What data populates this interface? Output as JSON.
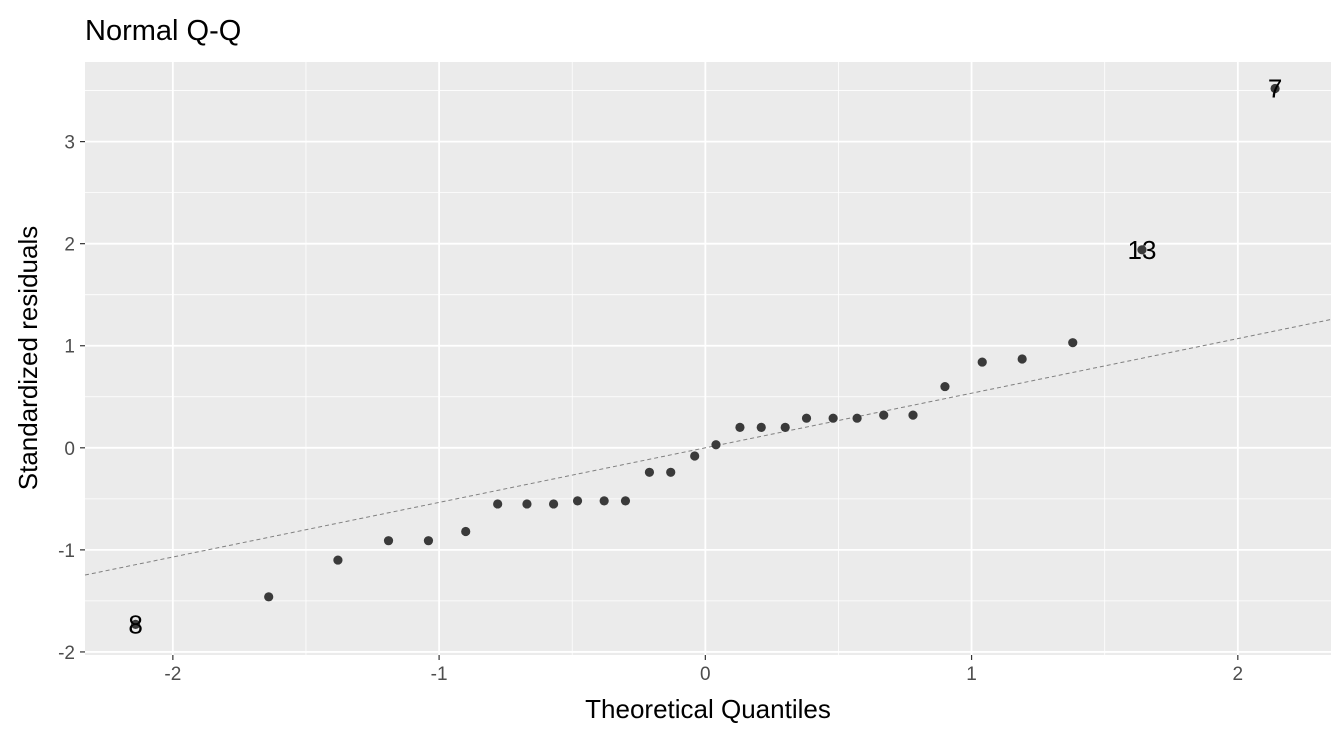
{
  "chart_data": {
    "type": "scatter",
    "title": "Normal Q-Q",
    "xlabel": "Theoretical Quantiles",
    "ylabel": "Standardized residuals",
    "xlim": [
      -2.33,
      2.35
    ],
    "ylim": [
      -2.03,
      3.78
    ],
    "xticks": [
      -2,
      -1,
      0,
      1,
      2
    ],
    "yticks": [
      -2,
      -1,
      0,
      1,
      2,
      3
    ],
    "x_tick_labels": [
      "-2",
      "-1",
      "0",
      "1",
      "2"
    ],
    "y_tick_labels": [
      "-2",
      "-1",
      "0",
      "1",
      "2",
      "3"
    ],
    "grid": true,
    "panel_color": "#ebebeb",
    "point_color": "#3a3a3a",
    "reference_line": {
      "intercept": 0.0,
      "slope": 0.535,
      "style": "dashed",
      "color": "#808080"
    },
    "points": [
      {
        "x": -2.14,
        "y": -1.73
      },
      {
        "x": -1.64,
        "y": -1.46
      },
      {
        "x": -1.38,
        "y": -1.1
      },
      {
        "x": -1.19,
        "y": -0.91
      },
      {
        "x": -1.04,
        "y": -0.91
      },
      {
        "x": -0.9,
        "y": -0.82
      },
      {
        "x": -0.78,
        "y": -0.55
      },
      {
        "x": -0.67,
        "y": -0.55
      },
      {
        "x": -0.57,
        "y": -0.55
      },
      {
        "x": -0.48,
        "y": -0.52
      },
      {
        "x": -0.38,
        "y": -0.52
      },
      {
        "x": -0.3,
        "y": -0.52
      },
      {
        "x": -0.21,
        "y": -0.24
      },
      {
        "x": -0.13,
        "y": -0.24
      },
      {
        "x": -0.04,
        "y": -0.08
      },
      {
        "x": 0.04,
        "y": 0.03
      },
      {
        "x": 0.13,
        "y": 0.2
      },
      {
        "x": 0.21,
        "y": 0.2
      },
      {
        "x": 0.3,
        "y": 0.2
      },
      {
        "x": 0.38,
        "y": 0.29
      },
      {
        "x": 0.48,
        "y": 0.29
      },
      {
        "x": 0.57,
        "y": 0.29
      },
      {
        "x": 0.67,
        "y": 0.32
      },
      {
        "x": 0.78,
        "y": 0.32
      },
      {
        "x": 0.9,
        "y": 0.6
      },
      {
        "x": 1.04,
        "y": 0.84
      },
      {
        "x": 1.19,
        "y": 0.87
      },
      {
        "x": 1.38,
        "y": 1.03
      },
      {
        "x": 1.64,
        "y": 1.94
      },
      {
        "x": 2.14,
        "y": 3.52
      }
    ],
    "annotations": [
      {
        "text": "8",
        "x": -2.14,
        "y": -1.73
      },
      {
        "text": "13",
        "x": 1.64,
        "y": 1.94
      },
      {
        "text": "7",
        "x": 2.14,
        "y": 3.52
      }
    ]
  }
}
